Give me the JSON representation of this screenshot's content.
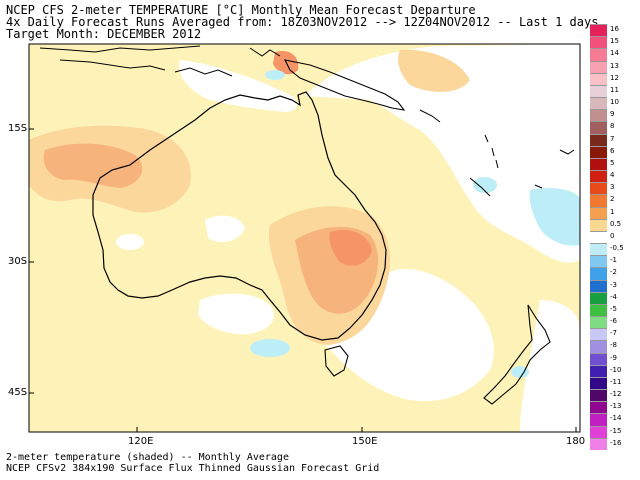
{
  "header": {
    "line1": "NCEP CFS 2-meter TEMPERATURE [°C] Monthly Mean Forecast Departure",
    "line2": "4x Daily Forecast Runs Averaged from: 18Z03NOV2012 --> 12Z04NOV2012 -- Last 1 days",
    "line3": "Target Month: DECEMBER 2012"
  },
  "axes": {
    "lat_labels": [
      "15S",
      "30S",
      "45S"
    ],
    "lon_labels": [
      "120E",
      "150E",
      "180"
    ]
  },
  "colorbar": {
    "labels": [
      "16",
      "15",
      "14",
      "13",
      "12",
      "11",
      "10",
      "9",
      "8",
      "7",
      "6",
      "5",
      "4",
      "3",
      "2",
      "1",
      "0.5",
      "0",
      "-0.5",
      "-1",
      "-2",
      "-3",
      "-4",
      "-5",
      "-6",
      "-7",
      "-8",
      "-9",
      "-10",
      "-11",
      "-12",
      "-13",
      "-14",
      "-15",
      "-16"
    ],
    "colors": [
      "#e6205a",
      "#f0507a",
      "#f47a95",
      "#f7a0b0",
      "#f9c0c8",
      "#e8d0d8",
      "#d8b8b8",
      "#c09090",
      "#a06060",
      "#7a2a1a",
      "#8a1a08",
      "#b01010",
      "#d02010",
      "#e84a1a",
      "#f07830",
      "#f5a050",
      "#fad890",
      "#ffffff",
      "#c0ecf5",
      "#80c8f0",
      "#40a0e8",
      "#2070d0",
      "#18a040",
      "#40c040",
      "#80dc80",
      "#c8c8f5",
      "#a090e0",
      "#7050d0",
      "#4020b0",
      "#300888",
      "#500868",
      "#900890",
      "#c020c0",
      "#e040d8",
      "#f080e8"
    ]
  },
  "footer": {
    "line1": "2-meter temperature (shaded) -- Monthly Average",
    "line2": "NCEP CFSv2 384x190 Surface Flux Thinned Gaussian Forecast Grid"
  },
  "fill_colors": {
    "warm_light": "#fdf3b8",
    "warm_mid": "#fbd79c",
    "warm_orange": "#f7b37c",
    "warm_dark": "#f59466",
    "cool_light": "#bdeef7",
    "land_border": "#000000"
  }
}
